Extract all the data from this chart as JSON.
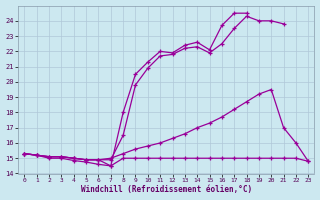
{
  "xlabel": "Windchill (Refroidissement éolien,°C)",
  "bg_color": "#cce8f0",
  "grid_color": "#b0c8d8",
  "line_color": "#990099",
  "xlim": [
    -0.5,
    23.5
  ],
  "ylim": [
    14,
    25
  ],
  "yticks": [
    14,
    15,
    16,
    17,
    18,
    19,
    20,
    21,
    22,
    23,
    24
  ],
  "xticks": [
    0,
    1,
    2,
    3,
    4,
    5,
    6,
    7,
    8,
    9,
    10,
    11,
    12,
    13,
    14,
    15,
    16,
    17,
    18,
    19,
    20,
    21,
    22,
    23
  ],
  "series": [
    {
      "x": [
        0,
        1,
        2,
        3,
        4,
        5,
        6,
        7,
        8,
        9,
        10,
        11,
        12,
        13,
        14,
        15,
        16,
        17,
        18,
        19,
        20,
        21,
        22,
        23
      ],
      "y": [
        15.3,
        15.2,
        15.0,
        15.0,
        14.85,
        14.75,
        14.6,
        14.5,
        15.0,
        15.0,
        15.0,
        15.0,
        15.0,
        15.0,
        15.0,
        15.0,
        15.0,
        15.0,
        15.0,
        15.0,
        15.0,
        15.0,
        15.0,
        14.8
      ]
    },
    {
      "x": [
        0,
        1,
        2,
        3,
        4,
        5,
        6,
        7,
        8,
        9,
        10,
        11,
        12,
        13,
        14,
        15,
        16,
        17,
        18,
        19,
        20,
        21,
        22,
        23
      ],
      "y": [
        15.3,
        15.2,
        15.1,
        15.1,
        15.0,
        14.9,
        14.9,
        15.0,
        15.3,
        15.6,
        15.8,
        16.0,
        16.3,
        16.6,
        17.0,
        17.3,
        17.7,
        18.2,
        18.7,
        19.2,
        19.5,
        17.0,
        16.0,
        14.8
      ]
    },
    {
      "x": [
        0,
        1,
        2,
        3,
        4,
        5,
        6,
        7,
        8,
        9,
        10,
        11,
        12,
        13,
        14,
        15,
        16,
        17,
        18,
        19,
        20,
        21
      ],
      "y": [
        15.3,
        15.2,
        15.1,
        15.1,
        15.0,
        14.9,
        14.9,
        14.9,
        16.5,
        19.8,
        20.9,
        21.7,
        21.8,
        22.2,
        22.3,
        21.9,
        22.5,
        23.5,
        24.3,
        24.0,
        24.0,
        23.8
      ]
    },
    {
      "x": [
        0,
        1,
        2,
        3,
        4,
        5,
        6,
        7,
        8,
        9,
        10,
        11,
        12,
        13,
        14,
        15,
        16,
        17,
        18
      ],
      "y": [
        15.3,
        15.2,
        15.1,
        15.1,
        15.0,
        14.9,
        14.9,
        14.5,
        18.0,
        20.5,
        21.3,
        22.0,
        21.9,
        22.4,
        22.6,
        22.1,
        23.7,
        24.5,
        24.5
      ]
    }
  ]
}
